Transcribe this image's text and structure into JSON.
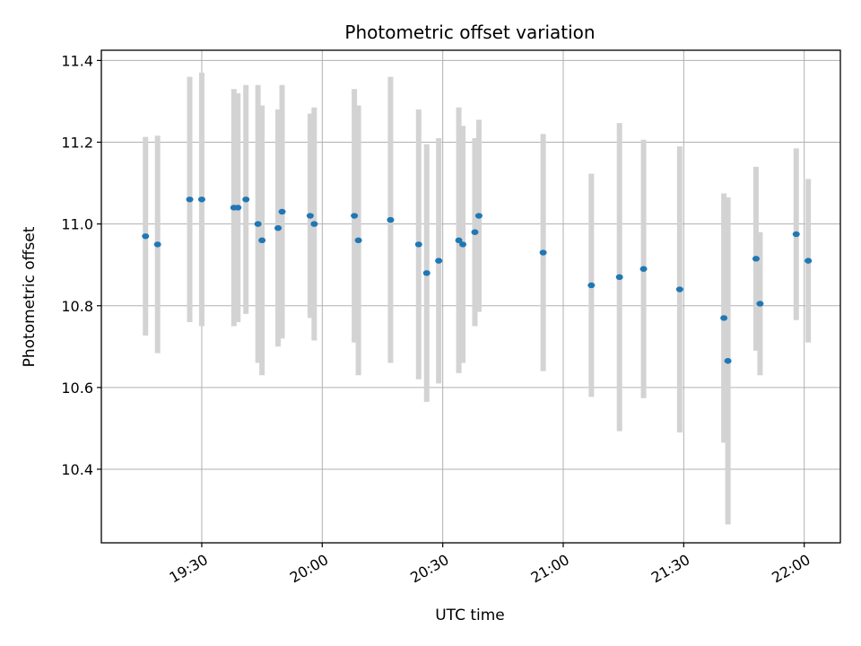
{
  "chart_data": {
    "type": "scatter",
    "title": "Photometric offset variation",
    "xlabel": "UTC time",
    "ylabel": "Photometric offset",
    "x_tick_labels": [
      "19:30",
      "20:00",
      "20:30",
      "21:00",
      "21:30",
      "22:00"
    ],
    "y_tick_labels": [
      "10.4",
      "10.6",
      "10.8",
      "11.0",
      "11.2",
      "11.4"
    ],
    "ylim": [
      10.22,
      11.425
    ],
    "xlim": [
      "19:05",
      "22:09"
    ],
    "grid": true,
    "colors": {
      "points": "#1f77b4",
      "error_bars": "#d3d3d3",
      "grid": "#b0b0b0"
    },
    "series": [
      {
        "points": [
          {
            "x": "19:16",
            "y": 10.97,
            "err": 0.243
          },
          {
            "x": "19:19",
            "y": 10.95,
            "err": 0.266
          },
          {
            "x": "19:27",
            "y": 11.06,
            "err": 0.3
          },
          {
            "x": "19:30",
            "y": 11.06,
            "err": 0.31
          },
          {
            "x": "19:38",
            "y": 11.04,
            "err": 0.29
          },
          {
            "x": "19:39",
            "y": 11.04,
            "err": 0.28
          },
          {
            "x": "19:41",
            "y": 11.06,
            "err": 0.28
          },
          {
            "x": "19:44",
            "y": 11.0,
            "err": 0.34
          },
          {
            "x": "19:45",
            "y": 10.96,
            "err": 0.33
          },
          {
            "x": "19:49",
            "y": 10.99,
            "err": 0.29
          },
          {
            "x": "19:50",
            "y": 11.03,
            "err": 0.31
          },
          {
            "x": "19:57",
            "y": 11.02,
            "err": 0.25
          },
          {
            "x": "19:58",
            "y": 11.0,
            "err": 0.285
          },
          {
            "x": "20:08",
            "y": 11.02,
            "err": 0.31
          },
          {
            "x": "20:09",
            "y": 10.96,
            "err": 0.33
          },
          {
            "x": "20:17",
            "y": 11.01,
            "err": 0.35
          },
          {
            "x": "20:24",
            "y": 10.95,
            "err": 0.33
          },
          {
            "x": "20:26",
            "y": 10.88,
            "err": 0.315
          },
          {
            "x": "20:29",
            "y": 10.91,
            "err": 0.3
          },
          {
            "x": "20:34",
            "y": 10.96,
            "err": 0.325
          },
          {
            "x": "20:35",
            "y": 10.95,
            "err": 0.29
          },
          {
            "x": "20:38",
            "y": 10.98,
            "err": 0.23
          },
          {
            "x": "20:39",
            "y": 11.02,
            "err": 0.235
          },
          {
            "x": "20:55",
            "y": 10.93,
            "err": 0.29
          },
          {
            "x": "21:07",
            "y": 10.85,
            "err": 0.273
          },
          {
            "x": "21:14",
            "y": 10.87,
            "err": 0.377
          },
          {
            "x": "21:20",
            "y": 10.89,
            "err": 0.316
          },
          {
            "x": "21:29",
            "y": 10.84,
            "err": 0.35
          },
          {
            "x": "21:40",
            "y": 10.77,
            "err": 0.305
          },
          {
            "x": "21:41",
            "y": 10.665,
            "err": 0.4
          },
          {
            "x": "21:48",
            "y": 10.915,
            "err": 0.225
          },
          {
            "x": "21:49",
            "y": 10.805,
            "err": 0.175
          },
          {
            "x": "21:58",
            "y": 10.975,
            "err": 0.21
          },
          {
            "x": "22:01",
            "y": 10.91,
            "err": 0.2
          }
        ]
      }
    ]
  }
}
